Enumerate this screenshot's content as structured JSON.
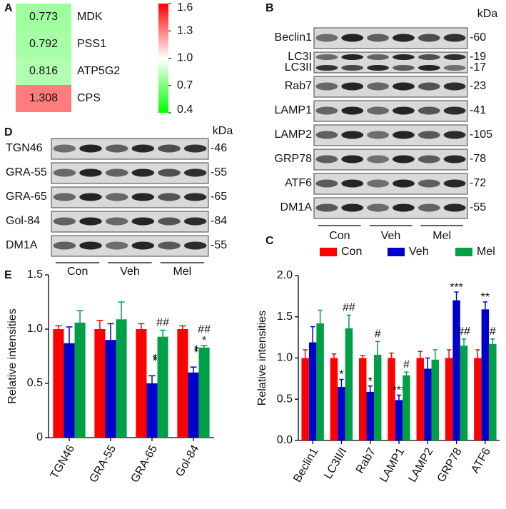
{
  "panels": [
    "A",
    "B",
    "C",
    "D",
    "E"
  ],
  "blots": [
    {
      "unit": "kDa",
      "groups": [
        "Con",
        "Veh",
        "Mel"
      ],
      "rows": [
        {
          "labels": [
            "Beclin1"
          ],
          "kda": [
            "-60"
          ]
        },
        {
          "labels": [
            "LC3I",
            "LC3II"
          ],
          "kda": [
            "-19",
            "-17"
          ]
        },
        {
          "labels": [
            "Rab7"
          ],
          "kda": [
            "-23"
          ]
        },
        {
          "labels": [
            "LAMP1"
          ],
          "kda": [
            "-41"
          ]
        },
        {
          "labels": [
            "LAMP2"
          ],
          "kda": [
            "-105"
          ]
        },
        {
          "labels": [
            "GRP78"
          ],
          "kda": [
            "-78"
          ]
        },
        {
          "labels": [
            "ATF6"
          ],
          "kda": [
            "-72"
          ]
        },
        {
          "labels": [
            "DM1A"
          ],
          "kda": [
            "-55"
          ]
        }
      ]
    },
    {
      "unit": "kDa",
      "groups": [
        "Con",
        "Veh",
        "Mel"
      ],
      "rows": [
        {
          "labels": [
            "TGN46"
          ],
          "kda": [
            "-46"
          ]
        },
        {
          "labels": [
            "GRA-55"
          ],
          "kda": [
            "-55"
          ]
        },
        {
          "labels": [
            "GRA-65"
          ],
          "kda": [
            "-65"
          ]
        },
        {
          "labels": [
            "Gol-84"
          ],
          "kda": [
            "-84"
          ]
        },
        {
          "labels": [
            "DM1A"
          ],
          "kda": [
            "-55"
          ]
        }
      ]
    }
  ],
  "chart_data": [
    {
      "type": "heatmap",
      "rows": [
        "MDK",
        "PSS1",
        "ATP5G2",
        "CPS"
      ],
      "values": [
        0.773,
        0.792,
        0.816,
        1.308
      ],
      "colorbar": {
        "lim": [
          0.4,
          1.6
        ],
        "ticks": [
          0.4,
          0.7,
          {
            "value": 1,
            "label": "1.0"
          },
          1.3,
          1.6
        ],
        "colors": [
          "#00ff00",
          "#ffffff",
          "#ff0000"
        ]
      }
    },
    {
      "type": "bar",
      "y_label": "Relative intensities",
      "categories": [
        "TGN46",
        "GRA-55",
        "GRA-65",
        "Gol-84"
      ],
      "ylim": [
        0,
        1.5
      ],
      "yticks": [
        0,
        0.5,
        {
          "value": 1,
          "label": "1.0"
        },
        1.5
      ],
      "legend": false,
      "vertical_stars": true,
      "series": [
        {
          "color": "#ff0000",
          "values": [
            1.0,
            1.0,
            1.0,
            1.0
          ],
          "errors": [
            0.03,
            0.08,
            0.05,
            0.03
          ]
        },
        {
          "color": "#0000cc",
          "values": [
            0.87,
            0.9,
            0.5,
            0.6
          ],
          "errors": [
            0.15,
            0.15,
            0.07,
            0.05
          ],
          "stars": [
            null,
            null,
            "***",
            "***"
          ]
        },
        {
          "color": "#00a046",
          "values": [
            1.06,
            1.09,
            0.93,
            0.83
          ],
          "errors": [
            0.11,
            0.16,
            0.06,
            0.02
          ],
          "stars": [
            null,
            null,
            null,
            "*"
          ],
          "hashes": [
            null,
            null,
            "##",
            "##"
          ]
        }
      ]
    },
    {
      "type": "bar",
      "y_label": "Relative intensities",
      "categories": [
        "Beclin1",
        "LC3II/I",
        "Rab7",
        "LAMP1",
        "LAMP2",
        "GRP78",
        "ATF6"
      ],
      "ylim": [
        0,
        2
      ],
      "yticks": [
        {
          "value": 0,
          "label": "0.0"
        },
        0.5,
        {
          "value": 1,
          "label": "1.0"
        },
        1.5,
        {
          "value": 2,
          "label": "2.0"
        }
      ],
      "legend": true,
      "vertical_stars": false,
      "series": [
        {
          "name": "Con",
          "color": "#ff0000",
          "values": [
            1.0,
            1.0,
            1.0,
            1.0,
            1.0,
            1.0,
            1.0
          ],
          "errors": [
            0.1,
            0.05,
            0.03,
            0.06,
            0.08,
            0.1,
            0.1
          ]
        },
        {
          "name": "Veh",
          "color": "#0000cc",
          "values": [
            1.19,
            0.65,
            0.59,
            0.49,
            0.87,
            1.7,
            1.59
          ],
          "errors": [
            0.19,
            0.09,
            0.07,
            0.06,
            0.13,
            0.1,
            0.09
          ],
          "stars": [
            null,
            "*",
            "*",
            "***",
            null,
            "***",
            "**"
          ]
        },
        {
          "name": "Mel",
          "color": "#00a046",
          "values": [
            1.42,
            1.36,
            1.04,
            0.79,
            0.98,
            1.15,
            1.17
          ],
          "errors": [
            0.16,
            0.16,
            0.16,
            0.04,
            0.12,
            0.08,
            0.06
          ],
          "hashes": [
            null,
            "##",
            "#",
            "#",
            null,
            "##",
            "#"
          ]
        }
      ]
    }
  ]
}
